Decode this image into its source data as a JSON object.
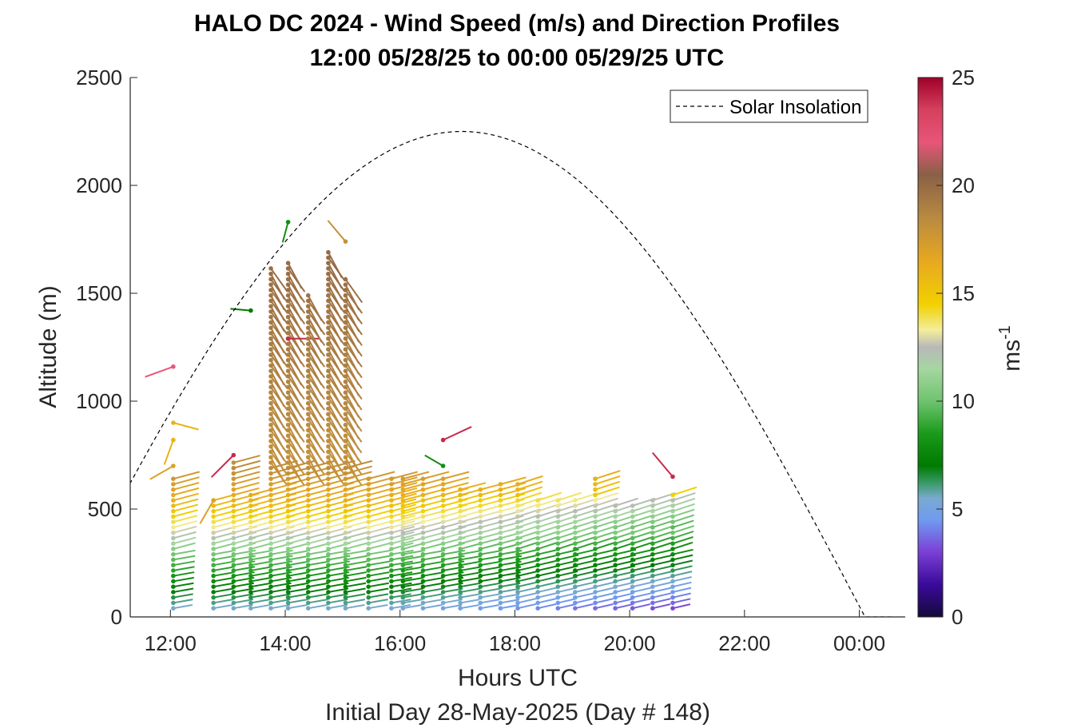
{
  "chart_data": {
    "type": "scatter",
    "title": "HALO DC 2024 - Wind Speed (m/s) and Direction Profiles",
    "subtitle": "12:00 05/28/25 to 00:00 05/29/25  UTC",
    "xlabel": "Hours UTC",
    "xlabel2": "Initial Day 28-May-2025 (Day # 148)",
    "ylabel": "Altitude (m)",
    "xlim": [
      11.3,
      24.8
    ],
    "ylim": [
      0,
      2500
    ],
    "x_ticks": [
      {
        "value": 12,
        "label": "12:00"
      },
      {
        "value": 14,
        "label": "14:00"
      },
      {
        "value": 16,
        "label": "16:00"
      },
      {
        "value": 18,
        "label": "18:00"
      },
      {
        "value": 20,
        "label": "20:00"
      },
      {
        "value": 22,
        "label": "22:00"
      },
      {
        "value": 24,
        "label": "00:00"
      }
    ],
    "y_ticks": [
      {
        "value": 0,
        "label": "0"
      },
      {
        "value": 500,
        "label": "500"
      },
      {
        "value": 1000,
        "label": "1000"
      },
      {
        "value": 1500,
        "label": "1500"
      },
      {
        "value": 2000,
        "label": "2000"
      },
      {
        "value": 2500,
        "label": "2500"
      }
    ],
    "legend": {
      "label": "Solar Insolation",
      "position": "top-right"
    },
    "solar_insolation": {
      "peak_hour": 17.1,
      "peak_altitude": 2250,
      "sunrise_hour": 10.05,
      "sunset_hour": 24.1,
      "style": "dashed",
      "color": "#000000"
    },
    "colorbar": {
      "label": "ms",
      "label_exponent": "-1",
      "range": [
        0,
        25
      ],
      "ticks": [
        {
          "value": 0,
          "label": "0"
        },
        {
          "value": 5,
          "label": "5"
        },
        {
          "value": 10,
          "label": "10"
        },
        {
          "value": 15,
          "label": "15"
        },
        {
          "value": 20,
          "label": "20"
        },
        {
          "value": 25,
          "label": "25"
        }
      ],
      "stops": [
        {
          "v": 0,
          "c": "#140a3c"
        },
        {
          "v": 1.5,
          "c": "#3a0a9a"
        },
        {
          "v": 3,
          "c": "#7b3fd6"
        },
        {
          "v": 4.5,
          "c": "#6f9bf0"
        },
        {
          "v": 5.5,
          "c": "#7aaad0"
        },
        {
          "v": 6.2,
          "c": "#3a9a6a"
        },
        {
          "v": 7,
          "c": "#007a00"
        },
        {
          "v": 8.5,
          "c": "#1a9a1a"
        },
        {
          "v": 10,
          "c": "#6ec46e"
        },
        {
          "v": 11.5,
          "c": "#a6d6a0"
        },
        {
          "v": 12.5,
          "c": "#b8b8b8"
        },
        {
          "v": 13.3,
          "c": "#f3ee9a"
        },
        {
          "v": 14.5,
          "c": "#f2d000"
        },
        {
          "v": 16.5,
          "c": "#e7a820"
        },
        {
          "v": 18.5,
          "c": "#b98a40"
        },
        {
          "v": 20.5,
          "c": "#8a6046"
        },
        {
          "v": 22,
          "c": "#e8557a"
        },
        {
          "v": 23.5,
          "c": "#d6405e"
        },
        {
          "v": 25,
          "c": "#a0002a"
        }
      ]
    },
    "profiles": [
      {
        "t": 12.05,
        "top": 650,
        "sparse": [
          {
            "a": 700,
            "s": 17,
            "d": 240
          },
          {
            "a": 820,
            "s": 16,
            "d": 200
          },
          {
            "a": 900,
            "s": 16,
            "d": 105
          },
          {
            "a": 1160,
            "s": 22,
            "d": 250
          }
        ]
      },
      {
        "t": 12.75,
        "top": 550,
        "sparse": [
          {
            "a": 540,
            "s": 17,
            "d": 210
          }
        ]
      },
      {
        "t": 13.1,
        "top": 720,
        "sparse": [
          {
            "a": 750,
            "s": 24,
            "d": 225
          }
        ]
      },
      {
        "t": 13.4,
        "top": 580,
        "sparse": [
          {
            "a": 1420,
            "s": 7,
            "d": 275
          }
        ]
      },
      {
        "t": 13.75,
        "top": 1620,
        "sparse": []
      },
      {
        "t": 14.05,
        "top": 1660,
        "sparse": [
          {
            "a": 1830,
            "s": 8,
            "d": 195
          },
          {
            "a": 1290,
            "s": 24,
            "d": 90
          }
        ]
      },
      {
        "t": 14.4,
        "top": 1500,
        "sparse": []
      },
      {
        "t": 14.75,
        "top": 1710,
        "sparse": []
      },
      {
        "t": 15.05,
        "top": 1580,
        "sparse": [
          {
            "a": 1740,
            "s": 18,
            "d": 320
          }
        ]
      },
      {
        "t": 15.45,
        "top": 650,
        "sparse": []
      },
      {
        "t": 15.85,
        "top": 650,
        "sparse": []
      },
      {
        "t": 16.05,
        "top": 650,
        "sparse": []
      },
      {
        "t": 16.4,
        "top": 650,
        "sparse": []
      },
      {
        "t": 16.75,
        "top": 650,
        "sparse": [
          {
            "a": 700,
            "s": 8,
            "d": 300
          },
          {
            "a": 820,
            "s": 24,
            "d": 65
          }
        ]
      },
      {
        "t": 17.05,
        "top": 600,
        "sparse": []
      },
      {
        "t": 17.4,
        "top": 600,
        "sparse": []
      },
      {
        "t": 17.75,
        "top": 620,
        "sparse": []
      },
      {
        "t": 18.05,
        "top": 620,
        "sparse": []
      },
      {
        "t": 18.4,
        "top": 550,
        "sparse": []
      },
      {
        "t": 18.75,
        "top": 550,
        "sparse": []
      },
      {
        "t": 19.05,
        "top": 550,
        "sparse": []
      },
      {
        "t": 19.4,
        "top": 650,
        "sparse": []
      },
      {
        "t": 19.75,
        "top": 520,
        "sparse": []
      },
      {
        "t": 20.05,
        "top": 520,
        "sparse": []
      },
      {
        "t": 20.4,
        "top": 540,
        "sparse": []
      },
      {
        "t": 20.75,
        "top": 580,
        "sparse": [
          {
            "a": 650,
            "s": 24,
            "d": 320
          }
        ]
      }
    ]
  }
}
